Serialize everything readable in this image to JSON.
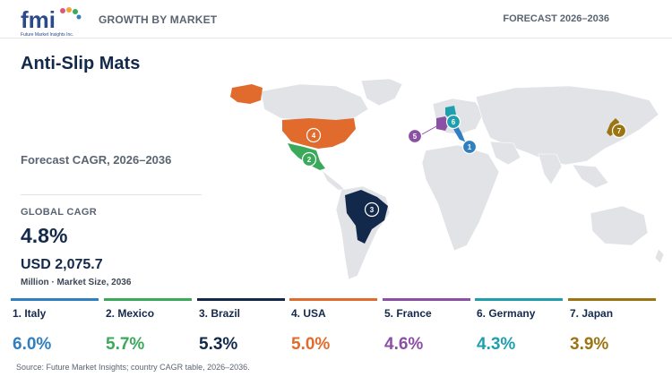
{
  "header": {
    "logo_text": "fmi",
    "logo_subtitle": "Future Market Insights Inc.",
    "section": "GROWTH BY MARKET",
    "forecast": "FORECAST 2026–2036"
  },
  "title": "Anti-Slip Mats",
  "cagr_label": "Forecast CAGR, 2026–2036",
  "global": {
    "label": "GLOBAL CAGR",
    "value": "4.8%",
    "market_size": "USD 2,075.7",
    "market_note": "Million · Market Size, 2036"
  },
  "countries": [
    {
      "rank": "1",
      "label": "1. Italy",
      "value": "6.0%",
      "color": "#2f7fc1"
    },
    {
      "rank": "2",
      "label": "2. Mexico",
      "value": "5.7%",
      "color": "#3aaa5a"
    },
    {
      "rank": "3",
      "label": "3. Brazil",
      "value": "5.3%",
      "color": "#13294b"
    },
    {
      "rank": "4",
      "label": "4. USA",
      "value": "5.0%",
      "color": "#e06b2c"
    },
    {
      "rank": "5",
      "label": "5. France",
      "value": "4.6%",
      "color": "#8b4fa6"
    },
    {
      "rank": "6",
      "label": "6. Germany",
      "value": "4.3%",
      "color": "#1f9fae"
    },
    {
      "rank": "7",
      "label": "7. Japan",
      "value": "3.9%",
      "color": "#9c7412"
    }
  ],
  "chart_data": {
    "type": "table",
    "title": "Anti-Slip Mats",
    "subtitle": "Forecast CAGR, 2026–2036",
    "categories": [
      "Italy",
      "Mexico",
      "Brazil",
      "USA",
      "France",
      "Germany",
      "Japan"
    ],
    "values": [
      6.0,
      5.7,
      5.3,
      5.0,
      4.6,
      4.3,
      3.9
    ],
    "unit": "%",
    "global_cagr": 4.8,
    "market_size_2036": "USD 2,075.7 Million"
  },
  "source": "Source: Future Market Insights; country CAGR table, 2026–2036."
}
